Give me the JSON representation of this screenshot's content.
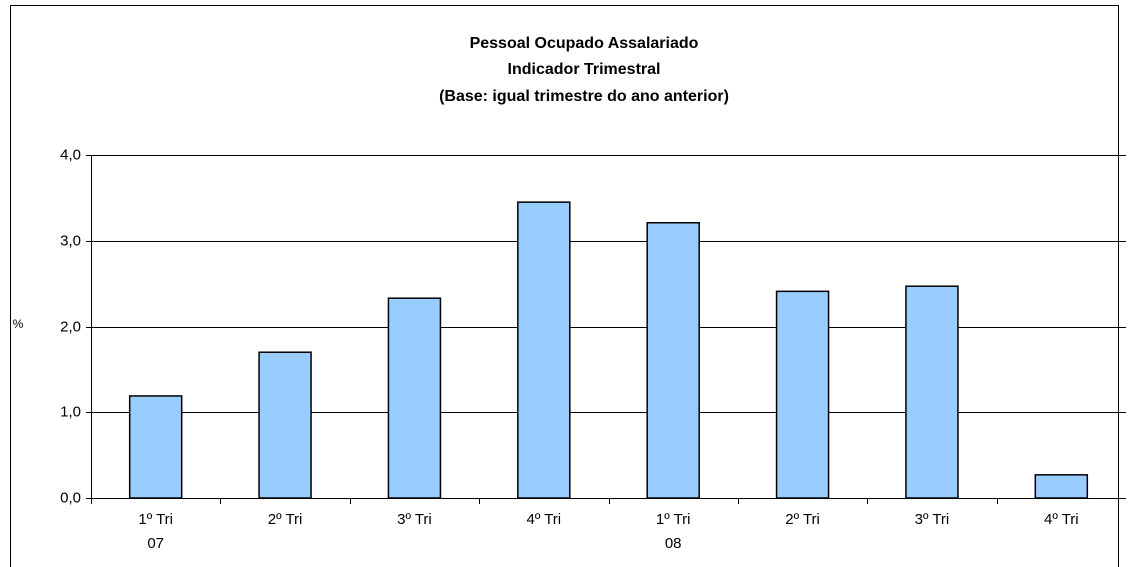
{
  "chart_data": {
    "type": "bar",
    "title": [
      "Pessoal Ocupado Assalariado",
      "Indicador Trimestral",
      "(Base: igual trimestre do ano anterior)"
    ],
    "y_label": "%",
    "categories": [
      "1º Tri",
      "2º Tri",
      "3º Tri",
      "4º Tri",
      "1º Tri",
      "2º Tri",
      "3º Tri",
      "4º Tri"
    ],
    "year_labels": [
      "07",
      null,
      null,
      null,
      "08",
      null,
      null,
      null
    ],
    "values": [
      1.19,
      1.7,
      2.33,
      3.45,
      3.21,
      2.41,
      2.47,
      0.27
    ],
    "color": "#99ccff",
    "ylim": [
      0,
      4
    ],
    "yticks": [
      {
        "value": 0,
        "label": "0,0"
      },
      {
        "value": 1,
        "label": "1,0"
      },
      {
        "value": 2,
        "label": "2,0"
      },
      {
        "value": 3,
        "label": "3,0"
      },
      {
        "value": 4,
        "label": "4,0"
      }
    ],
    "grid": true
  }
}
